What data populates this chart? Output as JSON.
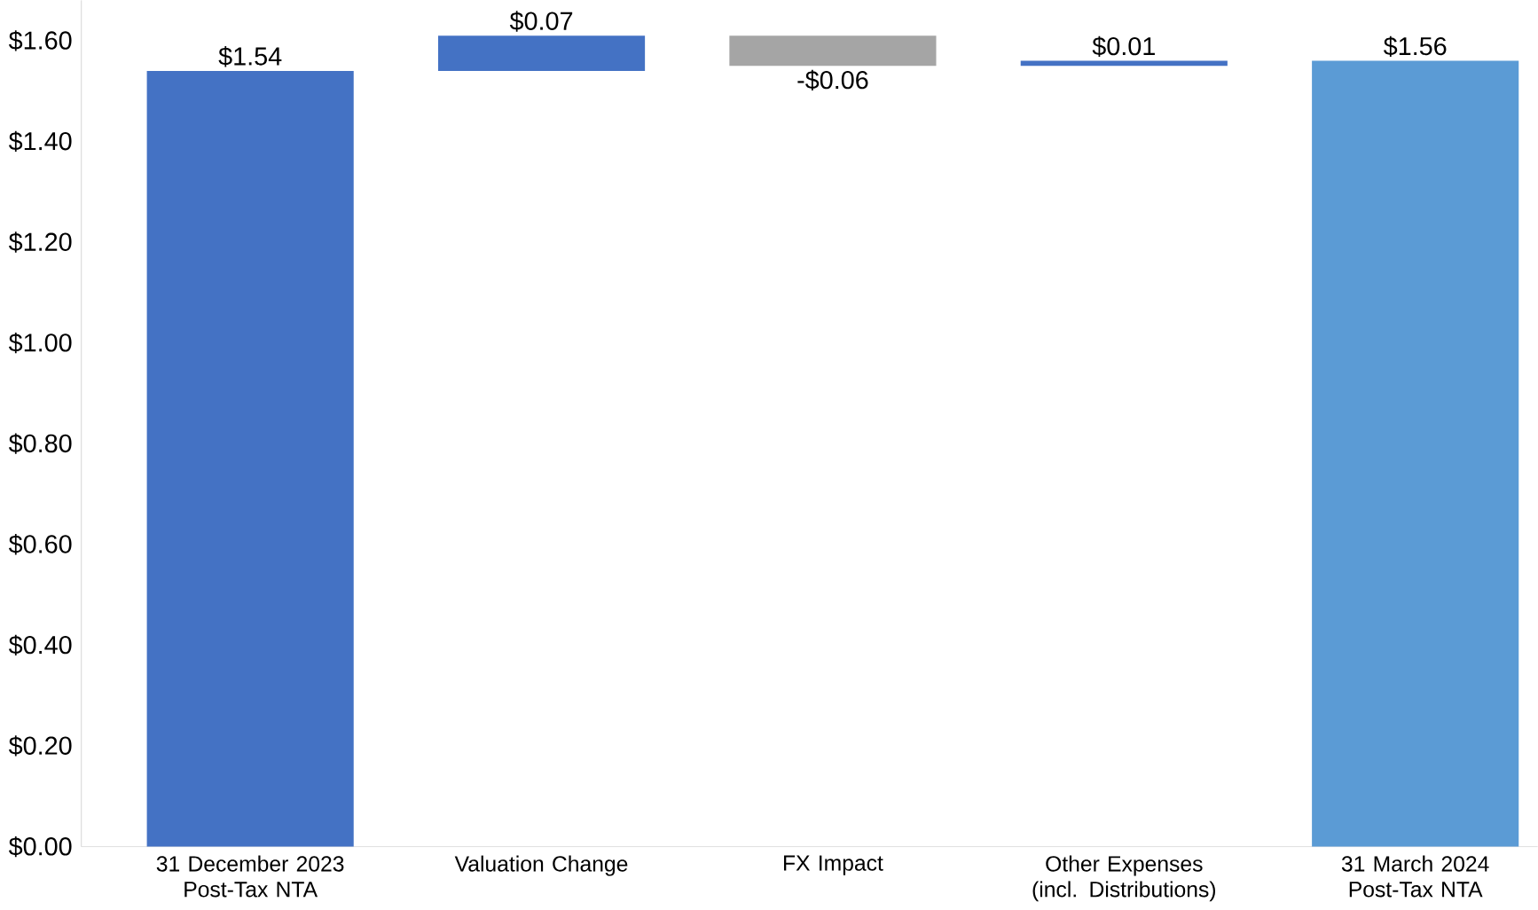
{
  "chart_data": {
    "type": "bar",
    "categories": [
      "31 December 2023 Post-Tax NTA",
      "Valuation Change",
      "FX Impact",
      "Other Expenses (incl. Distributions)",
      "31 March 2024 Post-Tax NTA"
    ],
    "values": [
      1.54,
      0.07,
      -0.06,
      0.01,
      1.56
    ],
    "base": [
      0,
      1.54,
      1.61,
      1.55,
      0
    ],
    "colors": [
      "#4472c4",
      "#4472c4",
      "#a5a5a5",
      "#4472c4",
      "#5b9bd5"
    ],
    "value_labels": [
      "$1.54",
      "$0.07",
      "-$0.06",
      "$0.01",
      "$1.56"
    ],
    "ylim": [
      0,
      1.68
    ],
    "yticks": [
      {
        "value": 0,
        "label": "$0.00"
      },
      {
        "value": 0.2,
        "label": "$0.20"
      },
      {
        "value": 0.4,
        "label": "$0.40"
      },
      {
        "value": 0.6,
        "label": "$0.60"
      },
      {
        "value": 0.8,
        "label": "$0.80"
      },
      {
        "value": 1.0,
        "label": "$1.00"
      },
      {
        "value": 1.2,
        "label": "$1.20"
      },
      {
        "value": 1.4,
        "label": "$1.40"
      },
      {
        "value": 1.6,
        "label": "$1.60"
      }
    ],
    "grid": false
  }
}
